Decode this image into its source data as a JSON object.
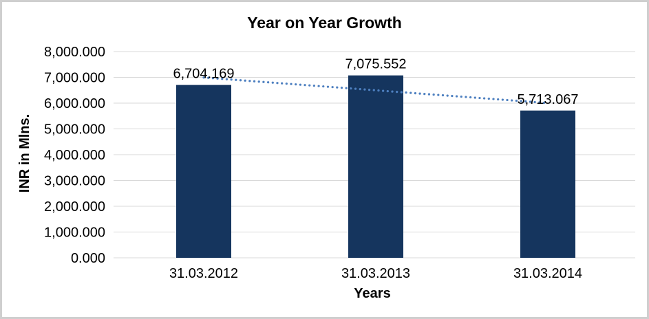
{
  "chart_data": {
    "type": "bar",
    "title": "Year on Year Growth",
    "xlabel": "Years",
    "ylabel": "INR in Mlns.",
    "categories": [
      "31.03.2012",
      "31.03.2013",
      "31.03.2014"
    ],
    "values": [
      6704.169,
      7075.552,
      5713.067
    ],
    "value_labels": [
      "6,704.169",
      "7,075.552",
      "5,713.067"
    ],
    "ylim": [
      0,
      8000
    ],
    "y_ticks": [
      {
        "value": 0,
        "label": "0.000"
      },
      {
        "value": 1000,
        "label": "1,000.000"
      },
      {
        "value": 2000,
        "label": "2,000.000"
      },
      {
        "value": 3000,
        "label": "3,000.000"
      },
      {
        "value": 4000,
        "label": "4,000.000"
      },
      {
        "value": 5000,
        "label": "5,000.000"
      },
      {
        "value": 6000,
        "label": "6,000.000"
      },
      {
        "value": 7000,
        "label": "7,000.000"
      },
      {
        "value": 8000,
        "label": "8,000.000"
      }
    ],
    "grid": true,
    "legend_position": "none",
    "bar_color": "#15355E",
    "gridline_color": "#D9D9D9",
    "text_color": "#000000",
    "trendline": {
      "type": "linear",
      "style": "dotted",
      "color": "#4E80C0",
      "start_value": 6993,
      "end_value": 6002
    }
  }
}
